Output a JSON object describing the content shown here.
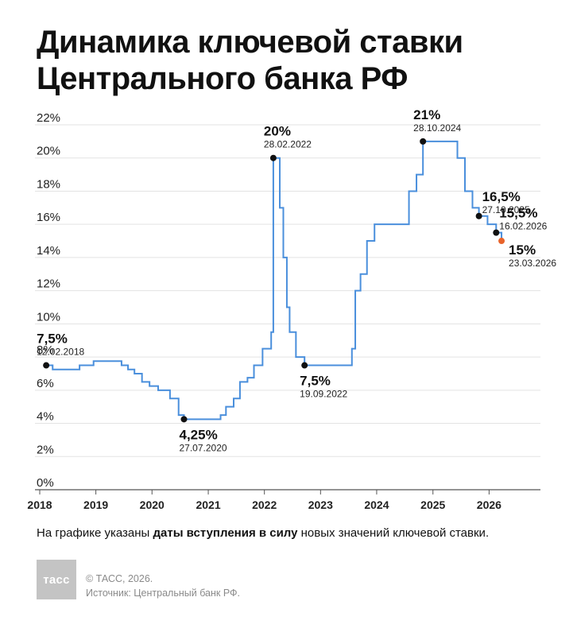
{
  "title": {
    "line1": "Динамика ключевой ставки",
    "line2": "Центрального банка РФ"
  },
  "footnote": {
    "before": "На графике указаны ",
    "bold": "даты вступления в силу",
    "after": " новых значений ключевой ставки."
  },
  "credits": {
    "copyright": "© ТАСС, 2026.",
    "source": "Источник: Центральный банк РФ."
  },
  "logo": {
    "text": "тасс"
  },
  "colors": {
    "line": "#4a8fdc",
    "grid": "#e3e3e3",
    "marker": "#111111",
    "highlight": "#e8632a"
  },
  "chart_data": {
    "type": "line",
    "step": true,
    "y_ticks": [
      "0%",
      "2%",
      "4%",
      "6%",
      "8%",
      "10%",
      "12%",
      "14%",
      "16%",
      "18%",
      "20%",
      "22%"
    ],
    "x_ticks": [
      "2018",
      "2019",
      "2020",
      "2021",
      "2022",
      "2023",
      "2024",
      "2025",
      "2026"
    ],
    "ylim": [
      0,
      22
    ],
    "xlim": [
      "2017-12-01",
      "2026-12-01"
    ],
    "grid": true,
    "series": [
      {
        "points": [
          [
            "2018-02-12",
            7.5
          ],
          [
            "2018-03-26",
            7.25
          ],
          [
            "2018-09-17",
            7.5
          ],
          [
            "2018-12-17",
            7.75
          ],
          [
            "2019-06-17",
            7.5
          ],
          [
            "2019-07-29",
            7.25
          ],
          [
            "2019-09-09",
            7.0
          ],
          [
            "2019-10-28",
            6.5
          ],
          [
            "2019-12-16",
            6.25
          ],
          [
            "2020-02-10",
            6.0
          ],
          [
            "2020-04-27",
            5.5
          ],
          [
            "2020-06-22",
            4.5
          ],
          [
            "2020-07-27",
            4.25
          ],
          [
            "2021-03-22",
            4.5
          ],
          [
            "2021-04-26",
            5.0
          ],
          [
            "2021-06-15",
            5.5
          ],
          [
            "2021-07-26",
            6.5
          ],
          [
            "2021-09-13",
            6.75
          ],
          [
            "2021-10-25",
            7.5
          ],
          [
            "2021-12-20",
            8.5
          ],
          [
            "2022-02-14",
            9.5
          ],
          [
            "2022-02-28",
            20.0
          ],
          [
            "2022-04-11",
            17.0
          ],
          [
            "2022-05-04",
            14.0
          ],
          [
            "2022-05-27",
            11.0
          ],
          [
            "2022-06-14",
            9.5
          ],
          [
            "2022-07-25",
            8.0
          ],
          [
            "2022-09-19",
            7.5
          ],
          [
            "2023-07-24",
            8.5
          ],
          [
            "2023-08-15",
            12.0
          ],
          [
            "2023-09-18",
            13.0
          ],
          [
            "2023-10-30",
            15.0
          ],
          [
            "2023-12-18",
            16.0
          ],
          [
            "2024-07-29",
            18.0
          ],
          [
            "2024-09-16",
            19.0
          ],
          [
            "2024-10-28",
            21.0
          ],
          [
            "2025-06-09",
            20.0
          ],
          [
            "2025-07-28",
            18.0
          ],
          [
            "2025-09-15",
            17.0
          ],
          [
            "2025-10-27",
            16.5
          ],
          [
            "2025-12-22",
            16.0
          ],
          [
            "2026-02-16",
            15.5
          ],
          [
            "2026-03-23",
            15.0
          ]
        ],
        "end_date": "2026-03-23"
      }
    ],
    "annotations": [
      {
        "value": "7,5%",
        "date": "12.02.2018",
        "x": "2018-02-12",
        "y": 7.5,
        "pos": "above"
      },
      {
        "value": "4,25%",
        "date": "27.07.2020",
        "x": "2020-07-27",
        "y": 4.25,
        "pos": "below"
      },
      {
        "value": "20%",
        "date": "28.02.2022",
        "x": "2022-02-28",
        "y": 20.0,
        "pos": "above"
      },
      {
        "value": "7,5%",
        "date": "19.09.2022",
        "x": "2022-09-19",
        "y": 7.5,
        "pos": "below"
      },
      {
        "value": "21%",
        "date": "28.10.2024",
        "x": "2024-10-28",
        "y": 21.0,
        "pos": "above"
      },
      {
        "value": "16,5%",
        "date": "27.10.2025",
        "x": "2025-10-27",
        "y": 16.5,
        "pos": "right"
      },
      {
        "value": "15,5%",
        "date": "16.02.2026",
        "x": "2026-02-16",
        "y": 15.5,
        "pos": "right"
      },
      {
        "value": "15%",
        "date": "23.03.2026",
        "x": "2026-03-23",
        "y": 15.0,
        "pos": "right-below",
        "highlight": true
      }
    ]
  }
}
